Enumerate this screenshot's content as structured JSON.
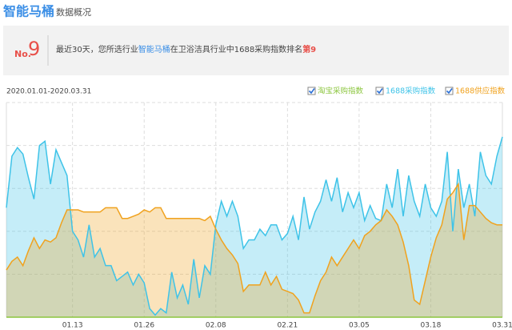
{
  "header": {
    "title": "智能马桶",
    "subtitle": "数据概况"
  },
  "notice": {
    "rank_prefix": "No.",
    "rank": 9,
    "text_before": "最近30天，您所选行业",
    "highlight": "智能马桶",
    "text_after": "在卫浴洁具行业中1688采购指数排名",
    "rank_text": "第9"
  },
  "chart_data": {
    "type": "area",
    "date_range": "2020.01.01-2020.03.31",
    "categories": [
      null,
      null,
      null,
      null,
      null,
      null,
      null,
      null,
      null,
      null,
      null,
      null,
      "01.13",
      null,
      null,
      null,
      null,
      null,
      null,
      null,
      null,
      null,
      null,
      null,
      null,
      "01.26",
      null,
      null,
      null,
      null,
      null,
      null,
      null,
      null,
      null,
      null,
      null,
      null,
      "02.08",
      null,
      null,
      null,
      null,
      null,
      null,
      null,
      null,
      null,
      null,
      null,
      null,
      "02.21",
      null,
      null,
      null,
      null,
      null,
      null,
      null,
      null,
      null,
      null,
      null,
      null,
      "03.05",
      null,
      null,
      null,
      null,
      null,
      null,
      null,
      null,
      null,
      null,
      null,
      null,
      "03.18",
      null,
      null,
      null,
      null,
      null,
      null,
      null,
      null,
      null,
      null,
      null,
      null,
      "03.31"
    ],
    "ylim": [
      0,
      100
    ],
    "grid": true,
    "series": [
      {
        "name": "淘宝采购指数",
        "color": "#8cc63f",
        "fill": false,
        "values": [
          0,
          0,
          0,
          0,
          0,
          0,
          0,
          0,
          0,
          0,
          0,
          0,
          0,
          0,
          0,
          0,
          0,
          0,
          0,
          0,
          0,
          0,
          0,
          0,
          0,
          0,
          0,
          0,
          0,
          0,
          0,
          0,
          0,
          0,
          0,
          0,
          0,
          0,
          0,
          0,
          0,
          0,
          0,
          0,
          0,
          0,
          0,
          0,
          0,
          0,
          0,
          0,
          0,
          0,
          0,
          0,
          0,
          0,
          0,
          0,
          0,
          0,
          0,
          0,
          0,
          0,
          0,
          0,
          0,
          0,
          0,
          0,
          0,
          0,
          0,
          0,
          0,
          0,
          0,
          0,
          0,
          0,
          0,
          0,
          0,
          0,
          0,
          0,
          0,
          0,
          0
        ]
      },
      {
        "name": "1688采购指数",
        "color": "#3ec3e8",
        "fill": true,
        "values": [
          51,
          75,
          79,
          76,
          65,
          55,
          80,
          82,
          62,
          78,
          72,
          66,
          40,
          36,
          28,
          43,
          28,
          32,
          24,
          24,
          17,
          19,
          21,
          15,
          20,
          16,
          4,
          1,
          4,
          2,
          21,
          9,
          15,
          6,
          27,
          9,
          24,
          20,
          43,
          54,
          47,
          54,
          47,
          32,
          36,
          36,
          41,
          38,
          43,
          43,
          36,
          39,
          47,
          36,
          56,
          41,
          49,
          54,
          64,
          54,
          65,
          49,
          58,
          51,
          58,
          45,
          52,
          46,
          45,
          62,
          51,
          69,
          47,
          66,
          54,
          47,
          62,
          51,
          47,
          54,
          77,
          40,
          69,
          51,
          62,
          47,
          77,
          66,
          62,
          75,
          84
        ]
      },
      {
        "name": "1688供应指数",
        "color": "#f0a21e",
        "fill": true,
        "values": [
          22,
          26,
          28,
          24,
          31,
          37,
          32,
          36,
          35,
          37,
          44,
          50,
          50,
          50,
          49,
          49,
          49,
          49,
          51,
          51,
          51,
          46,
          46,
          47,
          48,
          50,
          49,
          51,
          51,
          46,
          46,
          46,
          46,
          46,
          46,
          46,
          45,
          47,
          41,
          36,
          32,
          29,
          25,
          12,
          15,
          15,
          15,
          21,
          15,
          19,
          13,
          12,
          11,
          8,
          2,
          2,
          10,
          17,
          21,
          28,
          24,
          28,
          32,
          36,
          32,
          38,
          40,
          43,
          45,
          50,
          47,
          43,
          35,
          24,
          8,
          6,
          17,
          28,
          37,
          43,
          55,
          58,
          62,
          36,
          52,
          52,
          49,
          46,
          44,
          43,
          43
        ]
      }
    ]
  }
}
